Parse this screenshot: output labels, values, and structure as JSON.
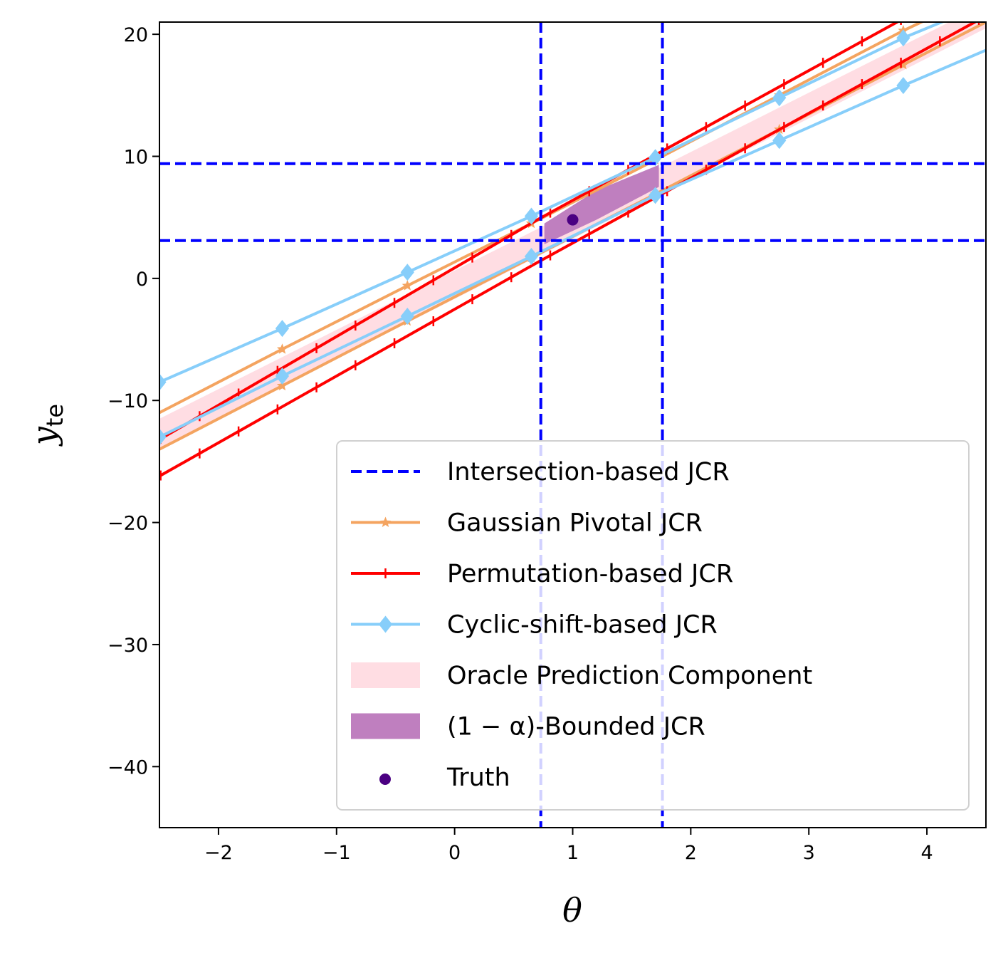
{
  "chart_data": {
    "type": "line",
    "title": "",
    "xlabel": "θ",
    "ylabel_main": "y",
    "ylabel_sub": "te",
    "xlim": [
      -2.5,
      4.5
    ],
    "ylim": [
      -45,
      21
    ],
    "xticks": [
      -2,
      -1,
      0,
      1,
      2,
      3,
      4
    ],
    "xtick_labels": [
      "−2",
      "−1",
      "0",
      "1",
      "2",
      "3",
      "4"
    ],
    "yticks": [
      20,
      10,
      0,
      -10,
      -20,
      -30,
      -40
    ],
    "ytick_labels": [
      "20",
      "10",
      "0",
      "−10",
      "−20",
      "−30",
      "−40"
    ],
    "grid": false,
    "legend_position": "lower-right",
    "colors": {
      "intersection": "#0000ff",
      "gaussian": "#f4a460",
      "permutation": "#ff0000",
      "cyclic": "#87cefa",
      "oracle": "#ffdde3",
      "bounded": "#bf7fbf",
      "truth": "#4b0082"
    },
    "intersection_jcr": {
      "theta": [
        0.73,
        1.76
      ],
      "y": [
        3.1,
        9.4
      ]
    },
    "oracle_band": {
      "x": [
        -2.5,
        4.5
      ],
      "upper": [
        -11.5,
        22.5
      ],
      "lower": [
        -14.0,
        20.5
      ]
    },
    "bounded_jcr": [
      [
        0.76,
        4.5
      ],
      [
        0.76,
        2.8
      ],
      [
        1.2,
        4.8
      ],
      [
        1.73,
        7.5
      ],
      [
        1.73,
        9.3
      ],
      [
        1.2,
        7.2
      ]
    ],
    "truth": {
      "theta": 1.0,
      "y": 4.8
    },
    "series": [
      {
        "name": "Gaussian Pivotal JCR",
        "key": "gaussian",
        "lines": [
          {
            "x": [
              -2.5,
              -1.46,
              -0.4,
              0.65,
              1.7,
              2.75,
              3.8,
              4.5
            ],
            "y": [
              -11.0,
              -5.8,
              -0.6,
              4.5,
              9.7,
              15.0,
              20.3,
              23.5
            ]
          },
          {
            "x": [
              -2.5,
              -1.46,
              -0.4,
              0.65,
              1.7,
              2.75,
              3.8,
              4.5
            ],
            "y": [
              -14.0,
              -8.8,
              -3.5,
              1.7,
              6.9,
              12.2,
              17.5,
              21.0
            ]
          }
        ]
      },
      {
        "name": "Permutation-based JCR",
        "key": "permutation",
        "lines": [
          {
            "x": [
              -2.5,
              0.7,
              4.5
            ],
            "y": [
              -13.2,
              4.8,
              25.0
            ]
          },
          {
            "x": [
              -2.5,
              0.7,
              4.5
            ],
            "y": [
              -16.2,
              1.3,
              21.5
            ]
          }
        ]
      },
      {
        "name": "Cyclic-shift-based JCR",
        "key": "cyclic",
        "lines": [
          {
            "x": [
              -2.5,
              -1.46,
              -0.4,
              0.65,
              1.7,
              2.75,
              3.8,
              4.5
            ],
            "y": [
              -8.5,
              -4.1,
              0.5,
              5.1,
              9.9,
              14.8,
              19.7,
              22.5
            ]
          },
          {
            "x": [
              -2.5,
              -1.46,
              -0.4,
              0.65,
              1.7,
              2.75,
              3.8,
              4.5
            ],
            "y": [
              -13.0,
              -8.0,
              -3.1,
              1.8,
              6.8,
              11.3,
              15.8,
              18.7
            ]
          }
        ]
      }
    ],
    "legend": [
      {
        "label": "Intersection-based JCR",
        "key": "intersection",
        "kind": "dashed"
      },
      {
        "label": "Gaussian Pivotal JCR",
        "key": "gaussian",
        "kind": "line-star"
      },
      {
        "label": "Permutation-based JCR",
        "key": "permutation",
        "kind": "line-tick"
      },
      {
        "label": "Cyclic-shift-based JCR",
        "key": "cyclic",
        "kind": "line-diamond"
      },
      {
        "label": "Oracle Prediction Component",
        "key": "oracle",
        "kind": "patch"
      },
      {
        "label": "(1 − α)-Bounded JCR",
        "key": "bounded",
        "kind": "patch"
      },
      {
        "label": "Truth",
        "key": "truth",
        "kind": "dot"
      }
    ]
  }
}
